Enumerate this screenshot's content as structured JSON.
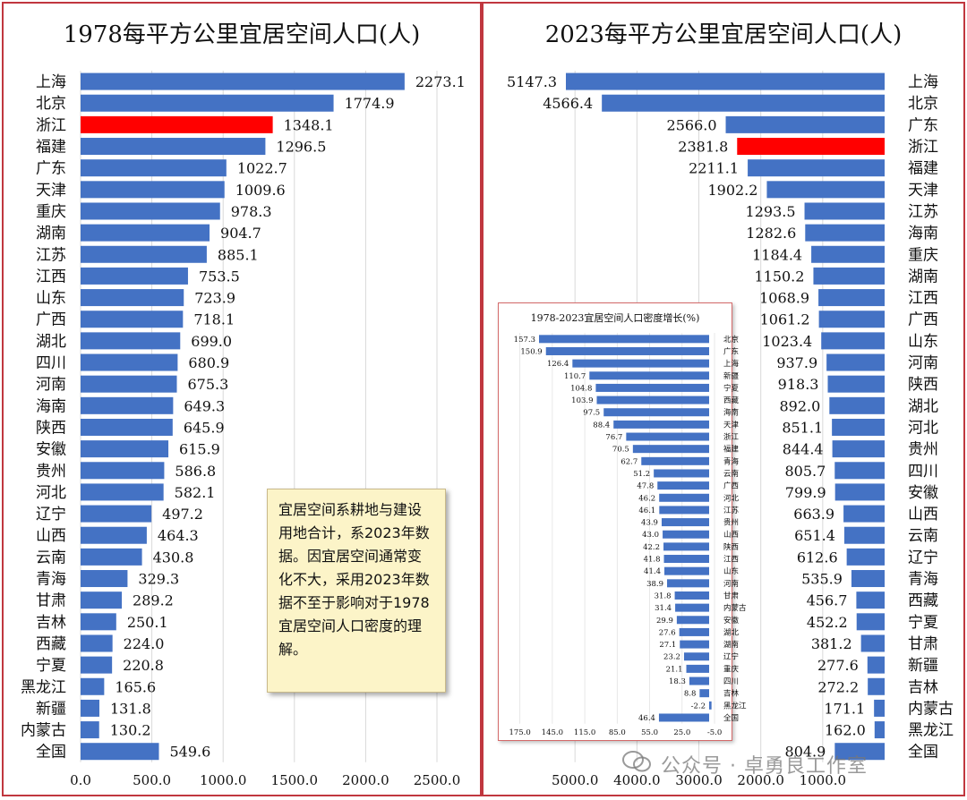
{
  "left_title": "1978每平方公里宜居空间人口(人)",
  "right_title": "2023每平方公里宜居空间人口(人)",
  "note_text": "宜居空间系耕地与建设用地合计，系2023年数据。因宜居空间通常变化不大，采用2023年数据不至于影响对于1978宜居空间人口密度的理解。",
  "watermark": "公众号 · 卓勇良工作室",
  "colors": {
    "bar": "#4472c4",
    "highlight": "#ff0000",
    "frame": "#c0373f"
  },
  "chart_data": [
    {
      "type": "bar",
      "orientation": "horizontal",
      "title": "1978每平方公里宜居空间人口(人)",
      "categories": [
        "上海",
        "北京",
        "浙江",
        "福建",
        "广东",
        "天津",
        "重庆",
        "湖南",
        "江苏",
        "江西",
        "山东",
        "广西",
        "湖北",
        "四川",
        "河南",
        "海南",
        "陕西",
        "安徽",
        "贵州",
        "河北",
        "辽宁",
        "山西",
        "云南",
        "青海",
        "甘肃",
        "吉林",
        "西藏",
        "宁夏",
        "黑龙江",
        "新疆",
        "内蒙古",
        "全国"
      ],
      "values": [
        2273.1,
        1774.9,
        1348.1,
        1296.5,
        1022.7,
        1009.6,
        978.3,
        904.7,
        885.1,
        753.5,
        723.9,
        718.1,
        699.0,
        680.9,
        675.3,
        649.3,
        645.9,
        615.9,
        586.8,
        582.1,
        497.2,
        464.3,
        430.8,
        329.3,
        289.2,
        250.1,
        224.0,
        220.8,
        165.6,
        131.8,
        130.2,
        549.6
      ],
      "value_labels": [
        "2273.1",
        "1774.9",
        "1348.1",
        "1296.5",
        "1022.7",
        "1009.6",
        "978.3",
        "904.7",
        "885.1",
        "753.5",
        "723.9",
        "718.1",
        "699.0",
        "680.9",
        "675.3",
        "649.3",
        "645.9",
        "615.9",
        "586.8",
        "582.1",
        "497.2",
        "464.3",
        "430.8",
        "329.3",
        "289.2",
        "250.1",
        "224.0",
        "220.8",
        "165.6",
        "131.8",
        "130.2",
        "549.6"
      ],
      "highlight": "浙江",
      "xlim": [
        0,
        2500
      ],
      "xticks": [
        "0.0",
        "500.0",
        "1000.0",
        "1500.0",
        "2000.0",
        "2500.0"
      ],
      "grid": true
    },
    {
      "type": "bar",
      "orientation": "horizontal",
      "reversed_axis": true,
      "title": "2023每平方公里宜居空间人口(人)",
      "categories": [
        "上海",
        "北京",
        "广东",
        "浙江",
        "福建",
        "天津",
        "江苏",
        "海南",
        "重庆",
        "湖南",
        "江西",
        "广西",
        "山东",
        "河南",
        "陕西",
        "湖北",
        "河北",
        "贵州",
        "四川",
        "安徽",
        "山西",
        "云南",
        "辽宁",
        "青海",
        "西藏",
        "宁夏",
        "甘肃",
        "新疆",
        "吉林",
        "内蒙古",
        "黑龙江",
        "全国"
      ],
      "values": [
        5147.3,
        4566.4,
        2566.0,
        2381.8,
        2211.1,
        1902.2,
        1293.5,
        1282.6,
        1184.4,
        1150.2,
        1068.9,
        1061.2,
        1023.4,
        937.9,
        918.3,
        892.0,
        851.1,
        844.4,
        805.7,
        799.9,
        663.9,
        651.4,
        612.6,
        535.9,
        456.7,
        452.2,
        381.2,
        277.6,
        272.2,
        171.1,
        162.0,
        804.9
      ],
      "value_labels": [
        "5147.3",
        "4566.4",
        "2566.0",
        "2381.8",
        "2211.1",
        "1902.2",
        "1293.5",
        "1282.6",
        "1184.4",
        "1150.2",
        "1068.9",
        "1061.2",
        "1023.4",
        "937.9",
        "918.3",
        "892.0",
        "851.1",
        "844.4",
        "805.7",
        "799.9",
        "663.9",
        "651.4",
        "612.6",
        "535.9",
        "456.7",
        "452.2",
        "381.2",
        "277.6",
        "272.2",
        "171.1",
        "162.0",
        "804.9"
      ],
      "highlight": "浙江",
      "xlim": [
        0,
        6000
      ],
      "xticks": [
        "5000.0",
        "4000.0",
        "3000.0",
        "2000.0",
        "1000.0"
      ],
      "grid": true
    },
    {
      "type": "bar",
      "orientation": "horizontal",
      "reversed_axis": true,
      "title": "1978-2023宜居空间人口密度增长(%)",
      "categories": [
        "北京",
        "广东",
        "上海",
        "新疆",
        "宁夏",
        "西藏",
        "海南",
        "天津",
        "浙江",
        "福建",
        "青海",
        "云南",
        "广西",
        "河北",
        "江苏",
        "贵州",
        "山西",
        "陕西",
        "江西",
        "山东",
        "河南",
        "甘肃",
        "内蒙古",
        "安徽",
        "湖北",
        "湖南",
        "辽宁",
        "重庆",
        "四川",
        "吉林",
        "黑龙江",
        "全国"
      ],
      "values": [
        157.3,
        150.9,
        126.4,
        110.7,
        104.8,
        103.9,
        97.5,
        88.4,
        76.7,
        70.5,
        62.7,
        51.2,
        47.8,
        46.2,
        46.1,
        43.9,
        43.0,
        42.2,
        41.8,
        41.4,
        38.9,
        31.8,
        31.4,
        29.9,
        27.6,
        27.1,
        23.2,
        21.1,
        18.3,
        8.8,
        -2.2,
        46.4
      ],
      "value_labels": [
        "157.3",
        "150.9",
        "126.4",
        "110.7",
        "104.8",
        "103.9",
        "97.5",
        "88.4",
        "76.7",
        "70.5",
        "62.7",
        "51.2",
        "47.8",
        "46.2",
        "46.1",
        "43.9",
        "43.0",
        "42.2",
        "41.8",
        "41.4",
        "38.9",
        "31.8",
        "31.4",
        "29.9",
        "27.6",
        "27.1",
        "23.2",
        "21.1",
        "18.3",
        "8.8",
        "-2.2",
        "46.4"
      ],
      "xlim": [
        -5,
        175
      ],
      "xticks": [
        "175.0",
        "145.0",
        "115.0",
        "85.0",
        "55.0",
        "25.0",
        "-5.0"
      ],
      "grid": true
    }
  ]
}
